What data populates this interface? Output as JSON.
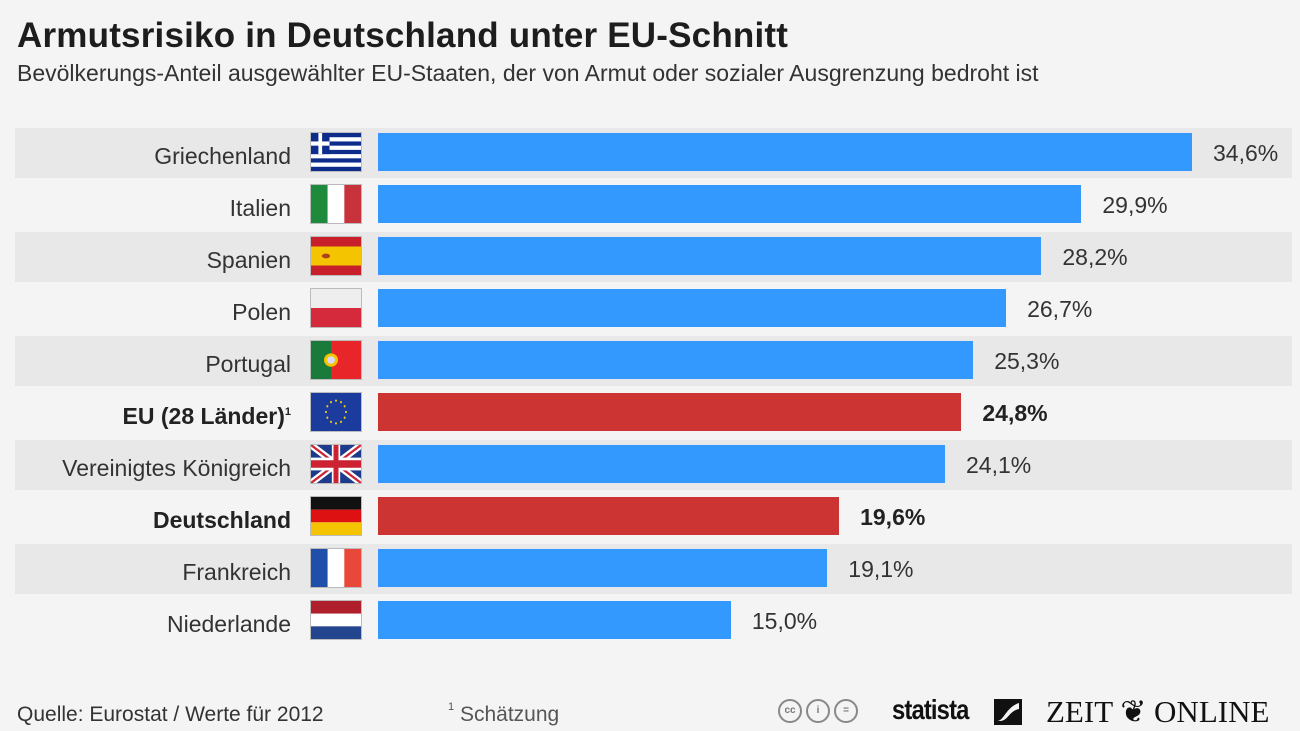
{
  "header": {
    "title": "Armutsrisiko in Deutschland unter EU-Schnitt",
    "subtitle": "Bevölkerungs-Anteil ausgewählter EU-Staaten, der von Armut oder sozialer Ausgrenzung bedroht ist"
  },
  "colors": {
    "default_bar": "#3399ff",
    "highlight_bar": "#cc3333",
    "stripe": "#e8e8e8",
    "background": "#f4f4f4"
  },
  "chart_data": {
    "type": "bar",
    "orientation": "horizontal",
    "title": "Armutsrisiko in Deutschland unter EU-Schnitt",
    "subtitle": "Bevölkerungs-Anteil ausgewählter EU-Staaten, der von Armut oder sozialer Ausgrenzung bedroht ist",
    "unit": "%",
    "xlim": [
      0,
      34.6
    ],
    "grid": false,
    "categories": [
      "Griechenland",
      "Italien",
      "Spanien",
      "Polen",
      "Portugal",
      "EU (28 Länder)",
      "Vereinigtes Königreich",
      "Deutschland",
      "Frankreich",
      "Niederlande"
    ],
    "values": [
      34.6,
      29.9,
      28.2,
      26.7,
      25.3,
      24.8,
      24.1,
      19.6,
      19.1,
      15.0
    ],
    "value_labels": [
      "34,6%",
      "29,9%",
      "28,2%",
      "26,7%",
      "25,3%",
      "24,8%",
      "24,1%",
      "19,6%",
      "19,1%",
      "15,0%"
    ],
    "highlighted": [
      "EU (28 Länder)",
      "Deutschland"
    ],
    "footnote_markers": {
      "EU (28 Länder)": "1"
    },
    "flags": [
      "greece-flag-icon",
      "italy-flag-icon",
      "spain-flag-icon",
      "poland-flag-icon",
      "portugal-flag-icon",
      "eu-flag-icon",
      "uk-flag-icon",
      "germany-flag-icon",
      "france-flag-icon",
      "netherlands-flag-icon"
    ]
  },
  "footer": {
    "source": "Quelle: Eurostat / Werte für 2012",
    "footnote_marker": "1",
    "footnote_text": " Schätzung",
    "cc_icons": [
      "cc",
      "by",
      "nd"
    ],
    "brand_statista": "statista",
    "brand_zeit": "ZEIT ❦ ONLINE"
  }
}
